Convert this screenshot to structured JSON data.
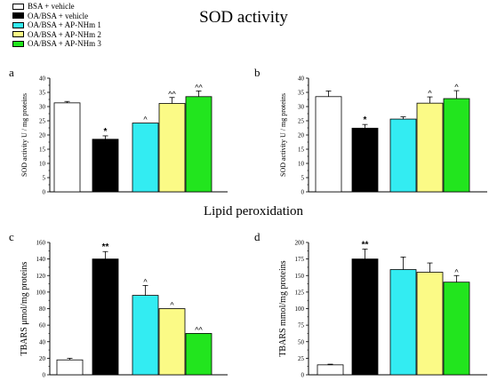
{
  "titles": {
    "sod": "SOD activity",
    "lipid": "Lipid peroxidation"
  },
  "colors": {
    "bsa_vehicle": "#ffffff",
    "oa_vehicle": "#000000",
    "ap_nhm1": "#33ecf2",
    "ap_nhm2": "#fbfa86",
    "ap_nhm3": "#22e51e"
  },
  "legend": [
    {
      "label": "BSA + vehicle",
      "color": "#ffffff"
    },
    {
      "label": "OA/BSA + vehicle",
      "color": "#000000"
    },
    {
      "label": "OA/BSA + AP-NHm 1",
      "color": "#33ecf2"
    },
    {
      "label": "OA/BSA + AP-NHm 2",
      "color": "#fbfa86"
    },
    {
      "label": "OA/BSA + AP-NHm 3",
      "color": "#22e51e"
    }
  ],
  "chart_data": [
    {
      "panel_label": "a",
      "type": "bar",
      "categories": [
        "BSA + vehicle",
        "OA/BSA + vehicle",
        "OA/BSA + AP-NHm 1",
        "OA/BSA + AP-NHm 2",
        "OA/BSA + AP-NHm 3"
      ],
      "values": [
        31.3,
        18.5,
        24.2,
        31.1,
        33.5
      ],
      "errors": [
        0.5,
        1.2,
        0,
        2.1,
        2.0
      ],
      "annotations": [
        "",
        "*",
        "^",
        "^^",
        "^^"
      ],
      "ylabel": "SOD activity U / mg proteins",
      "ylim": [
        0,
        40
      ],
      "yticks": [
        0,
        5,
        10,
        15,
        20,
        25,
        30,
        35,
        40
      ],
      "grid": false
    },
    {
      "panel_label": "b",
      "type": "bar",
      "categories": [
        "BSA + vehicle",
        "OA/BSA + vehicle",
        "OA/BSA + AP-NHm 1",
        "OA/BSA + AP-NHm 2",
        "OA/BSA + AP-NHm 3"
      ],
      "values": [
        33.5,
        22.4,
        25.6,
        31.2,
        32.8
      ],
      "errors": [
        2.0,
        1.3,
        0.8,
        2.2,
        2.8
      ],
      "annotations": [
        "",
        "*",
        "",
        "^",
        "^"
      ],
      "ylabel": "SOD activity U / mg proteins",
      "ylim": [
        0,
        40
      ],
      "yticks": [
        0,
        5,
        10,
        15,
        20,
        25,
        30,
        35,
        40
      ],
      "grid": false
    },
    {
      "panel_label": "c",
      "type": "bar",
      "categories": [
        "BSA + vehicle",
        "OA/BSA + vehicle",
        "OA/BSA + AP-NHm 1",
        "OA/BSA + AP-NHm 2",
        "OA/BSA + AP-NHm 3"
      ],
      "values": [
        18,
        140,
        96,
        80,
        50
      ],
      "errors": [
        2,
        9,
        12,
        0,
        0
      ],
      "annotations": [
        "",
        "**",
        "^",
        "^",
        "^^"
      ],
      "ylabel": "TBARS μmol/mg proteins",
      "ylim": [
        0,
        160
      ],
      "yticks": [
        0,
        20,
        40,
        60,
        80,
        100,
        120,
        140,
        160
      ],
      "grid": false
    },
    {
      "panel_label": "d",
      "type": "bar",
      "categories": [
        "BSA + vehicle",
        "OA/BSA + vehicle",
        "OA/BSA + AP-NHm 1",
        "OA/BSA + AP-NHm 2",
        "OA/BSA + AP-NHm 3"
      ],
      "values": [
        15,
        175,
        159,
        155,
        140
      ],
      "errors": [
        1,
        15,
        19,
        14,
        10
      ],
      "annotations": [
        "",
        "**",
        "",
        "",
        "^"
      ],
      "ylabel": "TBARS mmol/mg proteins",
      "ylim": [
        0,
        200
      ],
      "yticks": [
        0,
        25,
        50,
        75,
        100,
        125,
        150,
        175,
        200
      ],
      "grid": false
    }
  ]
}
